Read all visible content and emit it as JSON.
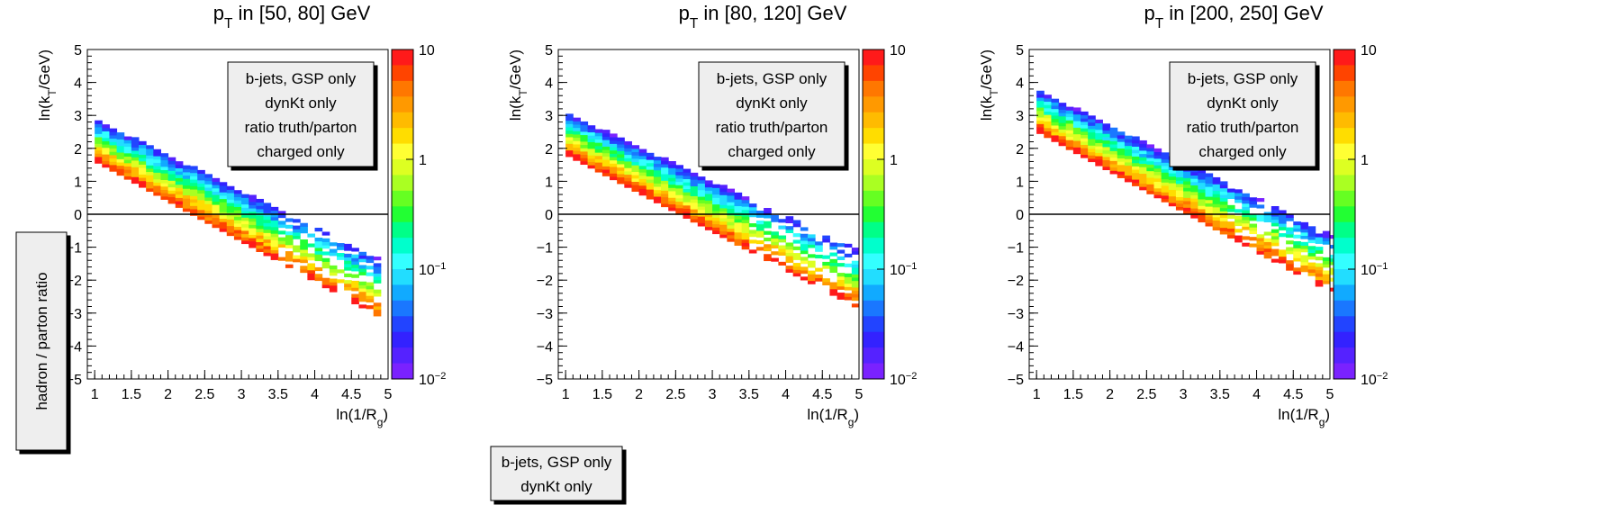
{
  "side_label": "hadron / parton ratio",
  "info_box": [
    "b-jets, GSP only",
    "dynKt only"
  ],
  "chart_data": [
    {
      "type": "heatmap",
      "title": "p_T in [50, 80] GeV",
      "title_parts": {
        "main": "p",
        "sub": "T",
        "rest": " in [50, 80] GeV"
      },
      "xlabel": {
        "main": "ln(1/R",
        "sub": "g",
        "rest": ")"
      },
      "ylabel": {
        "main": "ln(k",
        "sub": "T",
        "rest": "/GeV)"
      },
      "xlim": [
        0.9,
        5.0
      ],
      "ylim": [
        -5,
        5
      ],
      "x_ticks": [
        "1",
        "1.5",
        "2",
        "2.5",
        "3",
        "3.5",
        "4",
        "4.5",
        "5"
      ],
      "y_ticks": [
        "5",
        "4",
        "3",
        "2",
        "1",
        "0",
        "−1",
        "−2",
        "−3",
        "−4",
        "−5"
      ],
      "z_scale": "log",
      "zlim": [
        0.01,
        10
      ],
      "z_ticks": [
        {
          "label": "10",
          "value": 10
        },
        {
          "label": "1",
          "value": 1
        },
        {
          "label": "10",
          "sup": "−1",
          "value": 0.1
        },
        {
          "label": "10",
          "sup": "−2",
          "value": 0.01
        }
      ],
      "legend": [
        "b-jets, GSP only",
        "dynKt only",
        "ratio truth/parton",
        "charged only"
      ],
      "legend_placement": "top-right",
      "reference_line_y": 0,
      "band": {
        "top_y_at_x_1": 2.8,
        "slope": -1.1,
        "cutoff": 4.85
      }
    },
    {
      "type": "heatmap",
      "title": "p_T in [80, 120] GeV",
      "title_parts": {
        "main": "p",
        "sub": "T",
        "rest": " in [80, 120] GeV"
      },
      "xlabel": {
        "main": "ln(1/R",
        "sub": "g",
        "rest": ")"
      },
      "ylabel": {
        "main": "ln(k",
        "sub": "T",
        "rest": "/GeV)"
      },
      "xlim": [
        0.9,
        5.0
      ],
      "ylim": [
        -5,
        5
      ],
      "x_ticks": [
        "1",
        "1.5",
        "2",
        "2.5",
        "3",
        "3.5",
        "4",
        "4.5",
        "5"
      ],
      "y_ticks": [
        "5",
        "4",
        "3",
        "2",
        "1",
        "0",
        "−1",
        "−2",
        "−3",
        "−4",
        "−5"
      ],
      "z_scale": "log",
      "zlim": [
        0.01,
        10
      ],
      "z_ticks": [
        {
          "label": "10",
          "value": 10
        },
        {
          "label": "1",
          "value": 1
        },
        {
          "label": "10",
          "sup": "−1",
          "value": 0.1
        },
        {
          "label": "10",
          "sup": "−2",
          "value": 0.01
        }
      ],
      "legend": [
        "b-jets, GSP only",
        "dynKt only",
        "ratio truth/parton",
        "charged only"
      ],
      "legend_placement": "top-right",
      "reference_line_y": 0,
      "band": {
        "top_y_at_x_1": 3.0,
        "slope": -1.05,
        "cutoff": 4.9
      }
    },
    {
      "type": "heatmap",
      "title": "p_T in [200, 250] GeV",
      "title_parts": {
        "main": "p",
        "sub": "T",
        "rest": " in [200, 250] GeV"
      },
      "xlabel": {
        "main": "ln(1/R",
        "sub": "g",
        "rest": ")"
      },
      "ylabel": {
        "main": "ln(k",
        "sub": "T",
        "rest": "/GeV)"
      },
      "xlim": [
        0.9,
        5.0
      ],
      "ylim": [
        -5,
        5
      ],
      "x_ticks": [
        "1",
        "1.5",
        "2",
        "2.5",
        "3",
        "3.5",
        "4",
        "4.5",
        "5"
      ],
      "y_ticks": [
        "5",
        "4",
        "3",
        "2",
        "1",
        "0",
        "−1",
        "−2",
        "−3",
        "−4",
        "−5"
      ],
      "z_scale": "log",
      "zlim": [
        0.01,
        10
      ],
      "z_ticks": [
        {
          "label": "10",
          "value": 10
        },
        {
          "label": "1",
          "value": 1
        },
        {
          "label": "10",
          "sup": "−1",
          "value": 0.1
        },
        {
          "label": "10",
          "sup": "−2",
          "value": 0.01
        }
      ],
      "legend": [
        "b-jets, GSP only",
        "dynKt only",
        "ratio truth/parton",
        "charged only"
      ],
      "legend_placement": "top-right",
      "reference_line_y": 0,
      "band": {
        "top_y_at_x_1": 3.7,
        "slope": -1.1,
        "cutoff": 5.0
      }
    }
  ]
}
